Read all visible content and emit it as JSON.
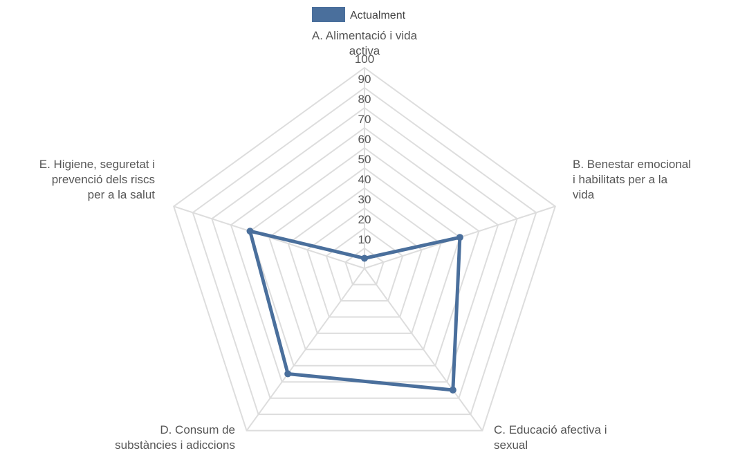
{
  "chart_data": {
    "type": "radar",
    "title": "",
    "categories": [
      "A. Alimentació i vida activa",
      "B. Benestar emocional i habilitats per a la vida",
      "C. Educació afectiva i sexual",
      "D. Consum de substàncies i adiccions",
      "E. Higiene, seguretat i prevenció dels riscs per a la salut"
    ],
    "category_lines": [
      [
        "A. Alimentació i vida",
        "activa"
      ],
      [
        "B. Benestar emocional",
        "i habilitats per a la",
        "vida"
      ],
      [
        "C. Educació afectiva i",
        "sexual"
      ],
      [
        "D. Consum de",
        "substàncies i adiccions"
      ],
      [
        "E. Higiene, seguretat i",
        "prevenció dels riscs",
        "per a la salut"
      ]
    ],
    "series": [
      {
        "name": "Actualment",
        "color": "#4a6f9c",
        "values": [
          5,
          50,
          75,
          65,
          60
        ]
      }
    ],
    "rlim": [
      0,
      100
    ],
    "ticks": [
      10,
      20,
      30,
      40,
      50,
      60,
      70,
      80,
      90,
      100
    ],
    "grid": true,
    "grid_color": "#dddddd",
    "legend_position": "top"
  }
}
